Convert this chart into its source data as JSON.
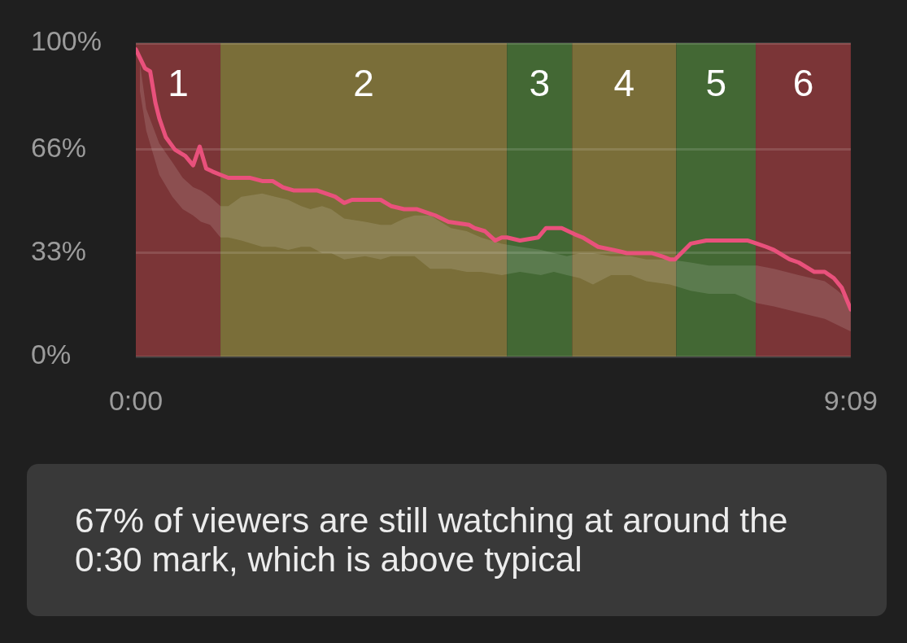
{
  "chart_data": {
    "type": "line",
    "x": [
      0,
      7,
      11,
      15,
      18,
      23,
      30,
      38,
      44,
      49,
      54,
      59,
      65,
      71,
      81,
      88,
      97,
      105,
      113,
      121,
      133,
      139,
      153,
      160,
      166,
      178,
      188,
      196,
      206,
      216,
      230,
      240,
      256,
      260,
      268,
      276,
      281,
      285,
      295,
      309,
      315,
      327,
      337,
      343,
      355,
      367,
      377,
      384,
      396,
      404,
      410,
      414,
      426,
      438,
      470,
      477,
      484,
      490,
      502,
      509,
      521,
      529,
      536,
      542,
      549
    ],
    "series": [
      {
        "color": "#e9517c",
        "values": [
          98,
          92,
          91,
          81,
          76,
          70,
          66,
          64,
          61,
          67,
          60,
          59,
          58,
          57,
          57,
          57,
          56,
          56,
          54,
          53,
          53,
          53,
          51,
          49,
          50,
          50,
          50,
          48,
          47,
          47,
          45,
          43,
          42,
          41,
          40,
          37,
          38,
          38,
          37,
          38,
          41,
          41,
          39,
          38,
          35,
          34,
          33,
          33,
          33,
          32,
          31,
          31,
          36,
          37,
          37,
          36,
          35,
          34,
          31,
          30,
          27,
          27,
          25,
          22,
          15
        ]
      },
      {
        "color": "#ffffff",
        "x": [
          3,
          8,
          18,
          28,
          36,
          44,
          50,
          57,
          65,
          71,
          81,
          97,
          107,
          117,
          127,
          134,
          143,
          150,
          160,
          176,
          188,
          196,
          206,
          214,
          226,
          242,
          254,
          265,
          281,
          295,
          311,
          321,
          331,
          341,
          351,
          365,
          380,
          392,
          410,
          426,
          440,
          460,
          477,
          490,
          509,
          529,
          539,
          549
        ],
        "values": [
          null,
          null,
          null,
          null,
          null,
          null,
          null,
          null,
          null,
          null,
          null,
          null,
          null,
          null,
          null,
          null,
          null,
          null,
          null,
          null,
          null,
          null,
          null,
          null,
          null,
          null,
          null,
          null,
          null,
          null,
          null,
          null,
          null,
          null,
          null,
          null,
          null,
          null,
          null,
          null,
          null,
          null,
          null,
          null,
          null,
          null,
          null,
          null
        ],
        "upper": [
          94,
          79,
          68,
          62,
          57,
          54,
          53,
          51,
          48,
          48,
          51,
          52,
          51,
          50,
          48,
          47,
          48,
          47,
          44,
          43,
          42,
          42,
          44,
          45,
          45,
          41,
          40,
          38,
          36,
          35,
          34,
          33,
          32,
          33,
          33,
          32,
          32,
          31,
          31,
          30,
          29,
          29,
          29,
          28,
          26,
          24,
          21,
          17
        ],
        "lower": [
          85,
          72,
          58,
          51,
          47,
          45,
          43,
          42,
          38,
          38,
          37,
          35,
          35,
          34,
          35,
          35,
          33,
          33,
          31,
          32,
          31,
          32,
          32,
          32,
          28,
          28,
          27,
          27,
          26,
          27,
          26,
          27,
          26,
          25,
          23,
          26,
          26,
          24,
          23,
          21,
          20,
          20,
          17,
          16,
          14,
          12,
          10,
          8
        ]
      }
    ],
    "xlim": [
      0,
      549
    ],
    "xticks": [
      {
        "value": 0,
        "label": "0:00"
      },
      {
        "value": 549,
        "label": "9:09"
      }
    ],
    "ylim": [
      0,
      100
    ],
    "yticks": [
      {
        "value": 0,
        "label": "0%"
      },
      {
        "value": 33,
        "label": "33%"
      },
      {
        "value": 66,
        "label": "66%"
      },
      {
        "value": 100,
        "label": "100%"
      }
    ],
    "grid": "y",
    "bands": [
      {
        "axis": "x",
        "from": 0,
        "to": 65,
        "label": "1",
        "color": "#7b3537"
      },
      {
        "axis": "x",
        "from": 65,
        "to": 285,
        "label": "2",
        "color": "#7a6e39"
      },
      {
        "axis": "x",
        "from": 285,
        "to": 335,
        "label": "3",
        "color": "#436834"
      },
      {
        "axis": "x",
        "from": 335,
        "to": 415,
        "label": "4",
        "color": "#7a6e39"
      },
      {
        "axis": "x",
        "from": 415,
        "to": 476,
        "label": "5",
        "color": "#436834"
      },
      {
        "axis": "x",
        "from": 476,
        "to": 549,
        "label": "6",
        "color": "#7b3537"
      }
    ],
    "annotations": [
      "67% of viewers are still watching at around the 0:30 mark, which is above typical"
    ]
  }
}
